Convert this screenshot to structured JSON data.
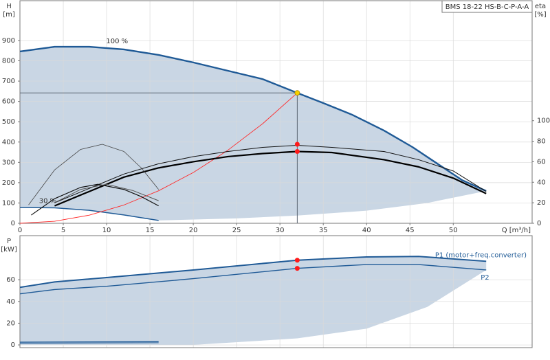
{
  "chart_data": [
    {
      "type": "line",
      "title": "BMS 18-22 HS-B-C-P-A-A",
      "x_label": "Q [m³/h]",
      "y_label": "H",
      "y_unit": "[m]",
      "y2_label": "eta",
      "y2_unit": "[%]",
      "xlim": [
        0,
        59.1
      ],
      "xticks": [
        0,
        5,
        10,
        15,
        20,
        25,
        30,
        35,
        40,
        45,
        50
      ],
      "ylim": [
        0,
        1096
      ],
      "yticks": [
        0,
        100,
        200,
        300,
        400,
        500,
        600,
        700,
        800,
        900
      ],
      "y2lim": [
        0,
        217
      ],
      "y2ticks": [
        0,
        20,
        40,
        60,
        80,
        100
      ],
      "grid": true,
      "guide_lines": true,
      "annotations": [
        "100 %",
        "30 %"
      ],
      "range": {
        "color": "#c9d6e4",
        "x": [
          16,
          25,
          32,
          40,
          47,
          53.8
        ],
        "values": [
          14,
          24,
          38,
          62,
          100,
          159
        ]
      },
      "series": [
        {
          "color": "#1f5a96",
          "width": 2.4,
          "x": [
            0,
            4,
            8,
            12,
            16,
            20,
            24,
            28,
            32,
            35,
            38.3,
            42,
            45.3,
            48.5,
            51,
            53.8
          ],
          "values": [
            846,
            869,
            869,
            856,
            829,
            792,
            751,
            710,
            642,
            592,
            535,
            457,
            375,
            284,
            213,
            159
          ]
        },
        {
          "color": "#1f5a96",
          "width": 1.5,
          "x": [
            0,
            4,
            8,
            12,
            16
          ],
          "values": [
            78,
            76,
            64,
            41,
            14
          ]
        },
        {
          "color": "#ff2a2a",
          "width": 0.9,
          "x": [
            0,
            4,
            8,
            12,
            16,
            20,
            24,
            28,
            32
          ],
          "values": [
            0,
            10,
            40,
            90,
            160,
            250,
            360,
            490,
            642
          ]
        },
        {
          "color": "#111111",
          "width": 1,
          "axis": "y2",
          "x": [
            4,
            8,
            12,
            16,
            20,
            24,
            28,
            32,
            36,
            42,
            46,
            50,
            53.8
          ],
          "values": [
            20,
            34,
            48,
            58,
            65,
            70,
            74,
            76,
            74,
            70,
            62,
            51,
            31
          ]
        },
        {
          "color": "#000000",
          "width": 2.2,
          "axis": "y2",
          "x": [
            4,
            8,
            12,
            16,
            20,
            24,
            28,
            32,
            36,
            42,
            46,
            50,
            53.8
          ],
          "values": [
            17,
            31,
            45,
            54,
            60,
            65,
            68,
            70,
            69,
            62,
            55,
            44,
            29
          ]
        },
        {
          "color": "#444444",
          "width": 0.8,
          "axis": "y2",
          "x": [
            1,
            4,
            7,
            9.5,
            12,
            14,
            16
          ],
          "values": [
            18,
            52,
            72,
            77,
            70,
            54,
            33
          ]
        },
        {
          "color": "#111111",
          "width": 1.2,
          "axis": "y2",
          "x": [
            1.3,
            4,
            7,
            9,
            12,
            14,
            16
          ],
          "values": [
            8,
            24,
            35,
            38,
            33,
            26,
            17
          ]
        },
        {
          "color": "#555555",
          "width": 1,
          "axis": "y2",
          "x": [
            4,
            7,
            10,
            13,
            16
          ],
          "values": [
            20,
            33,
            38,
            32,
            22
          ]
        }
      ],
      "markers": [
        {
          "x": 32,
          "y": 642,
          "color": "#f5d000"
        },
        {
          "x": 32,
          "y": 77,
          "axis": "y2",
          "color": "#ff1a1a"
        },
        {
          "x": 32,
          "y": 70,
          "axis": "y2",
          "color": "#ff1a1a"
        }
      ]
    },
    {
      "type": "line",
      "y_label": "P",
      "y_unit": "[kW]",
      "ylim": [
        -2.5,
        100.6
      ],
      "yticks": [
        0,
        20,
        40,
        60
      ],
      "grid": true,
      "range": {
        "color": "#c9d6e4",
        "x": [
          0,
          20,
          32,
          40,
          47,
          53.8
        ],
        "values": [
          0,
          0,
          6,
          15,
          35,
          69
        ]
      },
      "series": [
        {
          "name": "P1 (motor+freq.converter)",
          "color": "#1f5a96",
          "width": 2,
          "x": [
            0,
            4,
            10,
            20,
            32,
            40,
            46,
            53.8
          ],
          "values": [
            53,
            58,
            62,
            69,
            78,
            81,
            81.5,
            77
          ]
        },
        {
          "name": "P2",
          "color": "#1f5a96",
          "width": 1.4,
          "x": [
            0,
            4,
            10,
            20,
            32,
            40,
            46,
            53.8
          ],
          "values": [
            47,
            51,
            54,
            61,
            70.5,
            74,
            74,
            69
          ]
        },
        {
          "color": "#1f5a96",
          "width": 1.4,
          "x": [
            0,
            16
          ],
          "values": [
            2.5,
            3
          ]
        },
        {
          "color": "#1f5a96",
          "width": 1,
          "x": [
            0,
            16
          ],
          "values": [
            1.5,
            2
          ]
        }
      ],
      "markers": [
        {
          "x": 32,
          "y": 78,
          "color": "#ff1a1a"
        },
        {
          "x": 32,
          "y": 70.5,
          "color": "#ff1a1a"
        }
      ]
    }
  ]
}
